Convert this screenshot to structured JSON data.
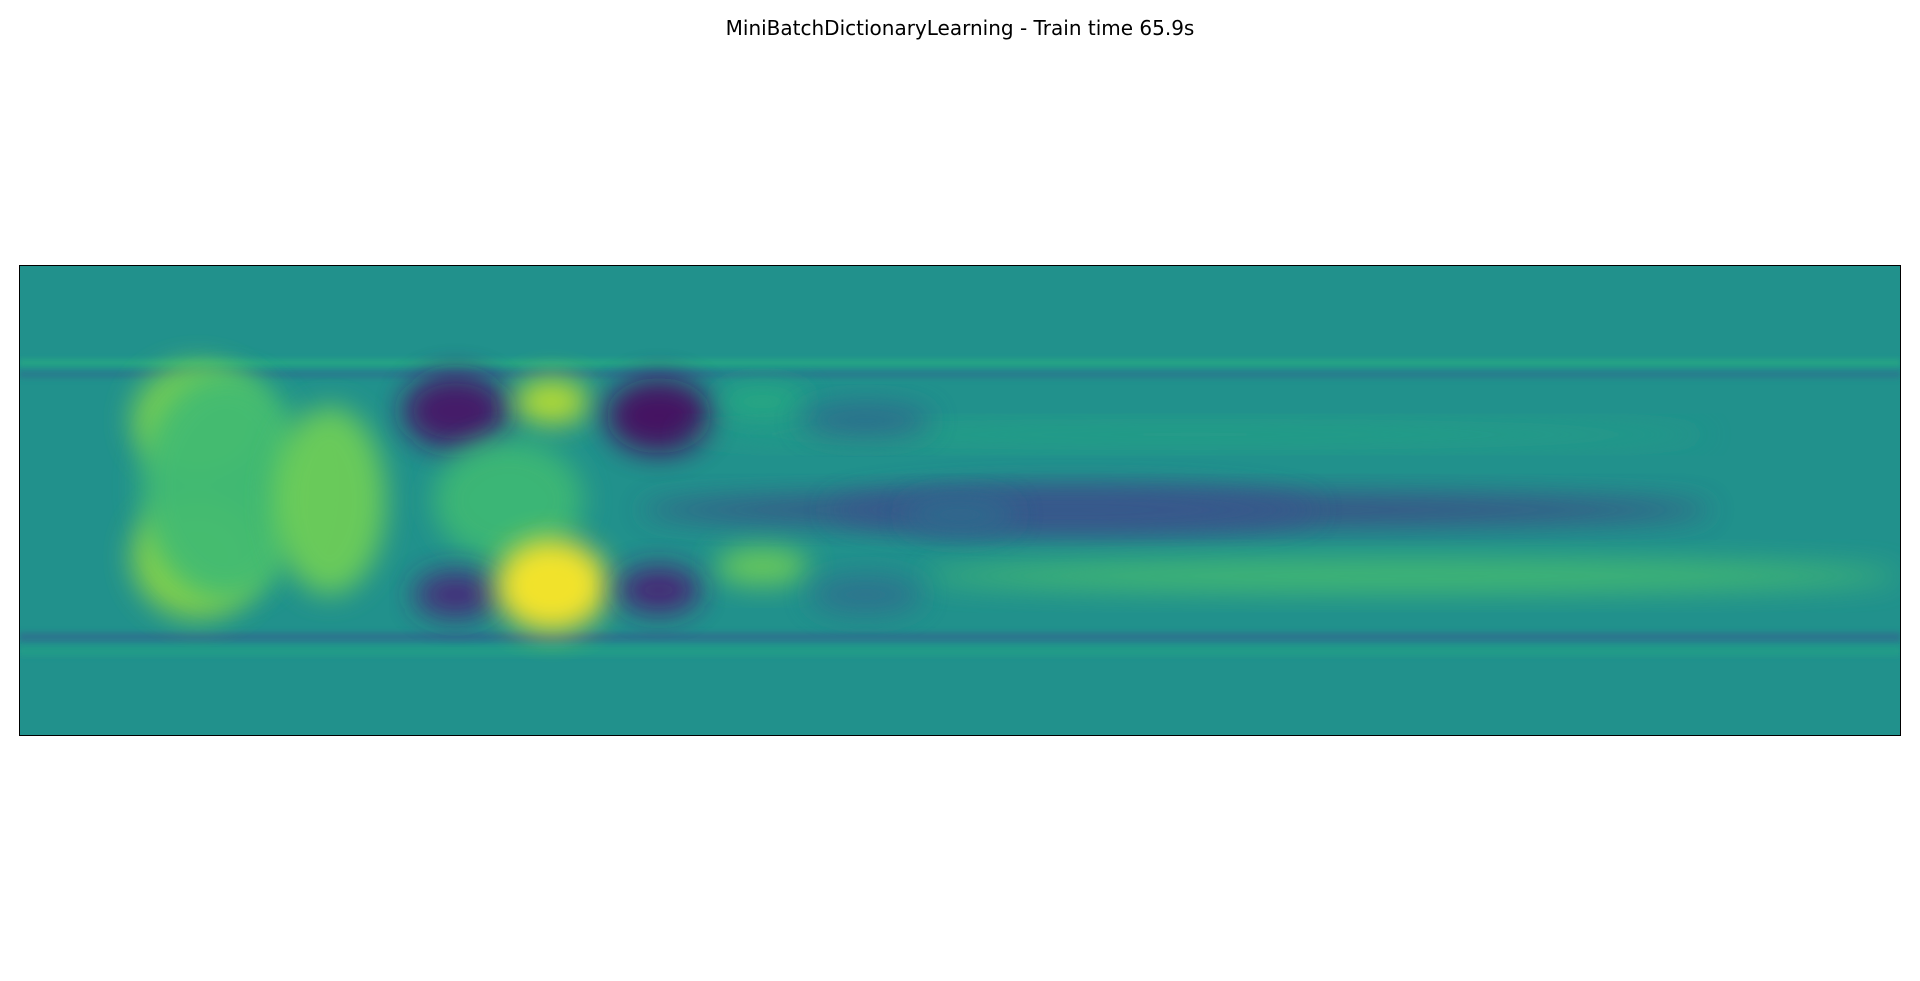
{
  "chart_data": {
    "type": "heatmap",
    "title": "MiniBatchDictionaryLearning - Train time 65.9s",
    "colormap": "viridis",
    "axes": {
      "x_ticks": "none",
      "y_ticks": "none",
      "grid": false,
      "legend": "none"
    },
    "value_range": [
      -1,
      1
    ],
    "background_value": 0.0,
    "features": [
      {
        "name": "upper-thin-band",
        "kind": "band",
        "x": [
          0,
          1
        ],
        "y": [
          0.2,
          0.215
        ],
        "value": 0.22
      },
      {
        "name": "upper-dark-band",
        "kind": "band",
        "x": [
          0,
          1
        ],
        "y": [
          0.225,
          0.24
        ],
        "value": -0.2
      },
      {
        "name": "lower-dark-band",
        "kind": "band",
        "x": [
          0,
          1
        ],
        "y": [
          0.78,
          0.8
        ],
        "value": -0.25
      },
      {
        "name": "lower-thin-band",
        "kind": "band",
        "x": [
          0,
          1
        ],
        "y": [
          0.81,
          0.83
        ],
        "value": 0.12
      },
      {
        "name": "left-head-upper",
        "kind": "blob",
        "cx": 0.095,
        "cy": 0.33,
        "rx": 0.035,
        "ry": 0.12,
        "value": 0.6
      },
      {
        "name": "left-head-lower",
        "kind": "blob",
        "cx": 0.095,
        "cy": 0.62,
        "rx": 0.035,
        "ry": 0.13,
        "value": 0.65
      },
      {
        "name": "left-head-core",
        "kind": "blob",
        "cx": 0.11,
        "cy": 0.47,
        "rx": 0.045,
        "ry": 0.24,
        "value": 0.38
      },
      {
        "name": "arc",
        "kind": "blob",
        "cx": 0.165,
        "cy": 0.5,
        "rx": 0.03,
        "ry": 0.2,
        "value": 0.55
      },
      {
        "name": "dark-1-upper",
        "kind": "blob",
        "cx": 0.232,
        "cy": 0.31,
        "rx": 0.028,
        "ry": 0.08,
        "value": -0.85
      },
      {
        "name": "bright-2-upper",
        "kind": "blob",
        "cx": 0.283,
        "cy": 0.29,
        "rx": 0.02,
        "ry": 0.05,
        "value": 0.8
      },
      {
        "name": "dark-3-upper",
        "kind": "blob",
        "cx": 0.34,
        "cy": 0.32,
        "rx": 0.028,
        "ry": 0.08,
        "value": -0.9
      },
      {
        "name": "mid-left-light",
        "kind": "blob",
        "cx": 0.26,
        "cy": 0.5,
        "rx": 0.04,
        "ry": 0.13,
        "value": 0.35
      },
      {
        "name": "dark-1-lower",
        "kind": "blob",
        "cx": 0.232,
        "cy": 0.7,
        "rx": 0.022,
        "ry": 0.05,
        "value": -0.7
      },
      {
        "name": "bright-2-lower",
        "kind": "blob",
        "cx": 0.283,
        "cy": 0.68,
        "rx": 0.03,
        "ry": 0.1,
        "value": 1.0
      },
      {
        "name": "dark-3-lower",
        "kind": "blob",
        "cx": 0.34,
        "cy": 0.69,
        "rx": 0.022,
        "ry": 0.05,
        "value": -0.75
      },
      {
        "name": "small-bright-lower",
        "kind": "blob",
        "cx": 0.395,
        "cy": 0.64,
        "rx": 0.025,
        "ry": 0.04,
        "value": 0.55
      },
      {
        "name": "small-light-upper",
        "kind": "blob",
        "cx": 0.395,
        "cy": 0.29,
        "rx": 0.025,
        "ry": 0.035,
        "value": 0.25
      },
      {
        "name": "upper-light-streak",
        "kind": "streak",
        "x": [
          0.35,
          0.9
        ],
        "cy": 0.36,
        "halfwidth": 0.02,
        "value": 0.2
      },
      {
        "name": "upper-dark-smudge",
        "kind": "blob",
        "cx": 0.45,
        "cy": 0.33,
        "rx": 0.035,
        "ry": 0.035,
        "value": -0.3
      },
      {
        "name": "central-dark-streak",
        "kind": "streak",
        "x": [
          0.33,
          0.9
        ],
        "cy": 0.52,
        "halfwidth": 0.035,
        "value": -0.55
      },
      {
        "name": "central-dark-core",
        "kind": "blob",
        "cx": 0.56,
        "cy": 0.52,
        "rx": 0.13,
        "ry": 0.05,
        "value": -0.45
      },
      {
        "name": "central-dark-tip",
        "kind": "blob",
        "cx": 0.5,
        "cy": 0.53,
        "rx": 0.03,
        "ry": 0.04,
        "value": -0.3
      },
      {
        "name": "lower-light-streak",
        "kind": "streak",
        "x": [
          0.48,
          1.0
        ],
        "cy": 0.66,
        "halfwidth": 0.035,
        "value": 0.4
      },
      {
        "name": "lower-mid-dark",
        "kind": "blob",
        "cx": 0.45,
        "cy": 0.7,
        "rx": 0.03,
        "ry": 0.04,
        "value": -0.25
      }
    ]
  }
}
